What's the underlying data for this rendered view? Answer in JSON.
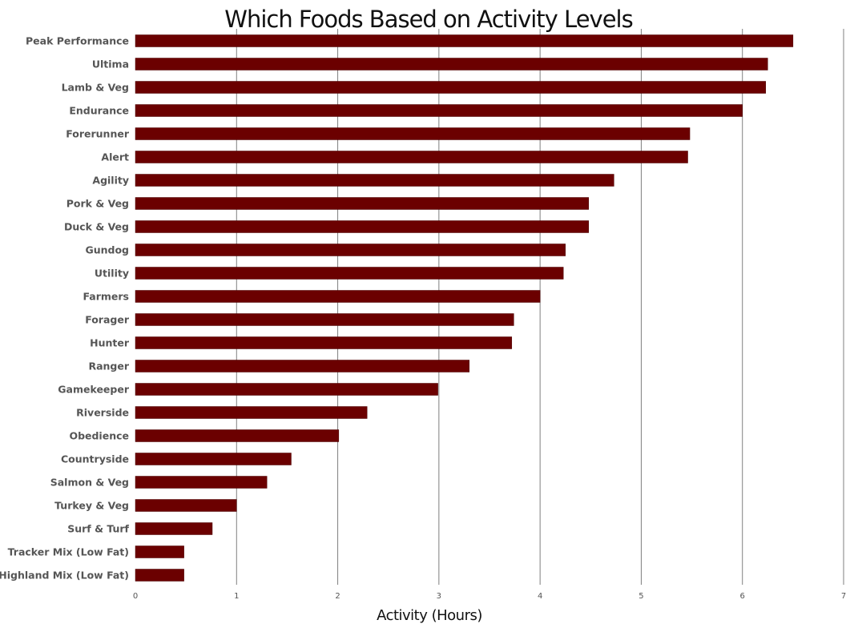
{
  "chart_data": {
    "type": "bar",
    "orientation": "horizontal",
    "title": "Which Foods Based on Activity Levels",
    "xlabel": "Activity (Hours)",
    "ylabel": "",
    "xlim": [
      0,
      7
    ],
    "x_ticks": [
      "0",
      "1",
      "2",
      "3",
      "4",
      "5",
      "6",
      "7"
    ],
    "grid": "vertical",
    "legend": "none",
    "bar_color": "#6b0000",
    "categories": [
      "Peak Performance",
      "Ultima",
      "Lamb & Veg",
      "Endurance",
      "Forerunner",
      "Alert",
      "Agility",
      "Pork & Veg",
      "Duck & Veg",
      "Gundog",
      "Utility",
      "Farmers",
      "Forager",
      "Hunter",
      "Ranger",
      "Gamekeeper",
      "Riverside",
      "Obedience",
      "Countryside",
      "Salmon & Veg",
      "Turkey & Veg",
      "Surf & Turf",
      "Tracker Mix (Low Fat)",
      "Highland Mix (Low Fat)"
    ],
    "values": [
      6.5,
      6.25,
      6.23,
      6.0,
      5.48,
      5.46,
      4.73,
      4.48,
      4.48,
      4.25,
      4.23,
      4.0,
      3.74,
      3.72,
      3.3,
      2.99,
      2.29,
      2.01,
      1.54,
      1.3,
      1.0,
      0.76,
      0.48,
      0.48
    ]
  }
}
